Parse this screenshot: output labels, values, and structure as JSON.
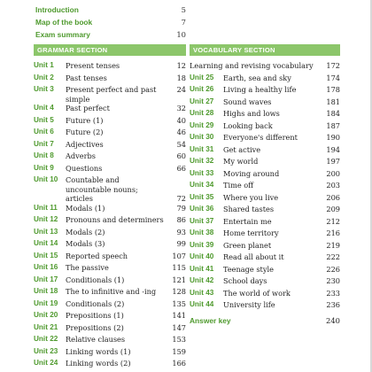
{
  "top_links": [
    {
      "label": "Introduction",
      "page": "5"
    },
    {
      "label": "Map of the book",
      "page": "7"
    },
    {
      "label": "Exam summary",
      "page": "10"
    }
  ],
  "grammar": {
    "header": "GRAMMAR SECTION",
    "units": [
      {
        "unit": "Unit 1",
        "title": "Present tenses",
        "page": "12"
      },
      {
        "unit": "Unit 2",
        "title": "Past tenses",
        "page": "18"
      },
      {
        "unit": "Unit 3",
        "title": "Present perfect and past simple",
        "page": "24"
      },
      {
        "unit": "Unit 4",
        "title": "Past perfect",
        "page": "32"
      },
      {
        "unit": "Unit 5",
        "title": "Future (1)",
        "page": "40"
      },
      {
        "unit": "Unit 6",
        "title": "Future (2)",
        "page": "46"
      },
      {
        "unit": "Unit 7",
        "title": "Adjectives",
        "page": "54"
      },
      {
        "unit": "Unit 8",
        "title": "Adverbs",
        "page": "60"
      },
      {
        "unit": "Unit 9",
        "title": "Questions",
        "page": "66"
      },
      {
        "unit": "Unit 10",
        "title": "Countable and uncountable nouns; articles",
        "page": "72"
      },
      {
        "unit": "Unit 11",
        "title": "Modals (1)",
        "page": "79"
      },
      {
        "unit": "Unit 12",
        "title": "Pronouns and determiners",
        "page": "86"
      },
      {
        "unit": "Unit 13",
        "title": "Modals (2)",
        "page": "93"
      },
      {
        "unit": "Unit 14",
        "title": "Modals (3)",
        "page": "99"
      },
      {
        "unit": "Unit 15",
        "title": "Reported speech",
        "page": "107"
      },
      {
        "unit": "Unit 16",
        "title": "The passive",
        "page": "115"
      },
      {
        "unit": "Unit 17",
        "title": "Conditionals (1)",
        "page": "121"
      },
      {
        "unit": "Unit 18",
        "title": "The to infinitive and -ing",
        "page": "128"
      },
      {
        "unit": "Unit 19",
        "title": "Conditionals (2)",
        "page": "135"
      },
      {
        "unit": "Unit 20",
        "title": "Prepositions (1)",
        "page": "141"
      },
      {
        "unit": "Unit 21",
        "title": "Prepositions (2)",
        "page": "147"
      },
      {
        "unit": "Unit 22",
        "title": "Relative clauses",
        "page": "153"
      },
      {
        "unit": "Unit 23",
        "title": "Linking words (1)",
        "page": "159"
      },
      {
        "unit": "Unit 24",
        "title": "Linking words (2)",
        "page": "166"
      }
    ]
  },
  "vocabulary": {
    "header": "VOCABULARY SECTION",
    "intro": {
      "title": "Learning and revising vocabulary",
      "page": "172"
    },
    "units": [
      {
        "unit": "Unit 25",
        "title": "Earth, sea and sky",
        "page": "174"
      },
      {
        "unit": "Unit 26",
        "title": "Living a healthy life",
        "page": "178"
      },
      {
        "unit": "Unit 27",
        "title": "Sound waves",
        "page": "181"
      },
      {
        "unit": "Unit 28",
        "title": "Highs and lows",
        "page": "184"
      },
      {
        "unit": "Unit 29",
        "title": "Looking back",
        "page": "187"
      },
      {
        "unit": "Unit 30",
        "title": "Everyone's different",
        "page": "190"
      },
      {
        "unit": "Unit 31",
        "title": "Get active",
        "page": "194"
      },
      {
        "unit": "Unit 32",
        "title": "My world",
        "page": "197"
      },
      {
        "unit": "Unit 33",
        "title": "Moving around",
        "page": "200"
      },
      {
        "unit": "Unit 34",
        "title": "Time off",
        "page": "203"
      },
      {
        "unit": "Unit 35",
        "title": "Where you live",
        "page": "206"
      },
      {
        "unit": "Unit 36",
        "title": "Shared tastes",
        "page": "209"
      },
      {
        "unit": "Unit 37",
        "title": "Entertain me",
        "page": "212"
      },
      {
        "unit": "Unit 38",
        "title": "Home territory",
        "page": "216"
      },
      {
        "unit": "Unit 39",
        "title": "Green planet",
        "page": "219"
      },
      {
        "unit": "Unit 40",
        "title": "Read all about it",
        "page": "222"
      },
      {
        "unit": "Unit 41",
        "title": "Teenage style",
        "page": "226"
      },
      {
        "unit": "Unit 42",
        "title": "School days",
        "page": "230"
      },
      {
        "unit": "Unit 43",
        "title": "The world of work",
        "page": "233"
      },
      {
        "unit": "Unit 44",
        "title": "University life",
        "page": "236"
      }
    ],
    "answer_key": {
      "label": "Answer key",
      "page": "240"
    }
  }
}
